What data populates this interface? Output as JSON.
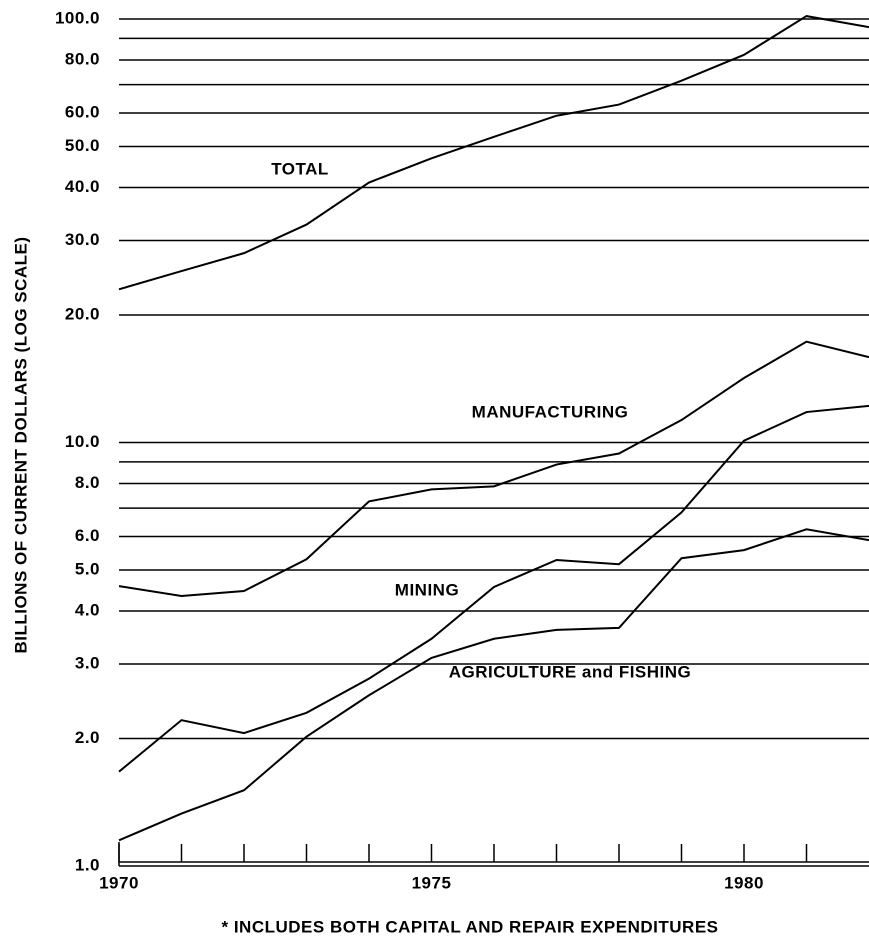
{
  "chart_data": {
    "type": "line",
    "y_axis_label": "BILLIONS OF CURRENT DOLLARS (LOG SCALE)",
    "footnote": "* INCLUDES BOTH CAPITAL AND REPAIR EXPENDITURES",
    "log_scale": true,
    "grid": true,
    "x": [
      1970,
      1971,
      1972,
      1973,
      1974,
      1975,
      1976,
      1977,
      1978,
      1979,
      1980,
      1981,
      1982
    ],
    "xlim": [
      1970,
      1982
    ],
    "xticks": [
      1970,
      1975,
      1980
    ],
    "minor_xticks": [
      1971,
      1972,
      1973,
      1974,
      1976,
      1977,
      1978,
      1979,
      1981
    ],
    "ylim": [
      1,
      100
    ],
    "yticks": [
      {
        "value": 100,
        "label": "100.0"
      },
      {
        "value": 80,
        "label": "80.0"
      },
      {
        "value": 60,
        "label": "60.0"
      },
      {
        "value": 50,
        "label": "50.0"
      },
      {
        "value": 40,
        "label": "40.0"
      },
      {
        "value": 30,
        "label": "30.0"
      },
      {
        "value": 20,
        "label": "20.0"
      },
      {
        "value": 10,
        "label": "10.0"
      },
      {
        "value": 8,
        "label": "8.0"
      },
      {
        "value": 6,
        "label": "6.0"
      },
      {
        "value": 5,
        "label": "5.0"
      },
      {
        "value": 4,
        "label": "4.0"
      },
      {
        "value": 3,
        "label": "3.0"
      },
      {
        "value": 2,
        "label": "2.0"
      },
      {
        "value": 1,
        "label": "1.0"
      }
    ],
    "minor_yticks": [
      90,
      70,
      9,
      7
    ],
    "series": [
      {
        "name": "TOTAL",
        "color": "#000000",
        "values": [
          23.0,
          25.4,
          28.0,
          32.7,
          41.1,
          46.9,
          52.7,
          59.1,
          62.8,
          71.5,
          82.3,
          101.6,
          95.7
        ]
      },
      {
        "name": "MANUFACTURING",
        "color": "#000000",
        "values": [
          4.58,
          4.34,
          4.46,
          5.3,
          7.26,
          7.75,
          7.88,
          8.87,
          9.42,
          11.3,
          14.2,
          17.3,
          15.9
        ]
      },
      {
        "name": "MINING",
        "color": "#000000",
        "values": [
          1.67,
          2.21,
          2.06,
          2.3,
          2.77,
          3.44,
          4.56,
          5.28,
          5.16,
          6.84,
          10.1,
          11.8,
          12.2
        ]
      },
      {
        "name": "AGRICULTURE and FISHING",
        "color": "#000000",
        "values": [
          1.15,
          1.33,
          1.51,
          2.02,
          2.53,
          3.1,
          3.44,
          3.61,
          3.65,
          5.33,
          5.57,
          6.24,
          5.88
        ]
      }
    ]
  }
}
